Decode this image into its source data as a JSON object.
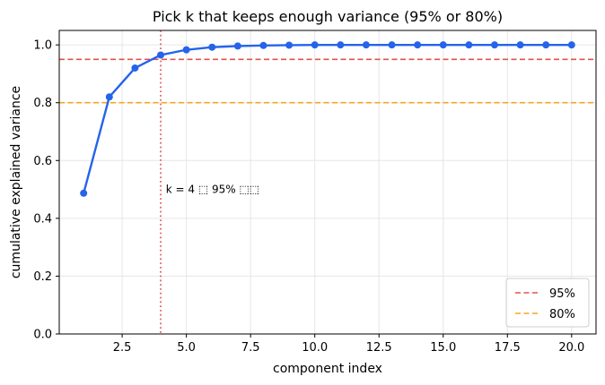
{
  "chart_data": {
    "type": "line",
    "title": "Pick k that keeps enough variance (95% or 80%)",
    "xlabel": "component index",
    "ylabel": "cumulative explained variance",
    "xlim": [
      0.05,
      20.95
    ],
    "ylim": [
      0.0,
      1.05
    ],
    "xticks": [
      2.5,
      5.0,
      7.5,
      10.0,
      12.5,
      15.0,
      17.5,
      20.0
    ],
    "xtick_labels": [
      "2.5",
      "5.0",
      "7.5",
      "10.0",
      "12.5",
      "15.0",
      "17.5",
      "20.0"
    ],
    "yticks": [
      0.0,
      0.2,
      0.4,
      0.6,
      0.8,
      1.0
    ],
    "ytick_labels": [
      "0.0",
      "0.2",
      "0.4",
      "0.6",
      "0.8",
      "1.0"
    ],
    "grid": true,
    "series": [
      {
        "color": "#2563eb",
        "x": [
          1,
          2,
          3,
          4,
          5,
          6,
          7,
          8,
          9,
          10,
          11,
          12,
          13,
          14,
          15,
          16,
          17,
          18,
          19,
          20
        ],
        "values": [
          0.487,
          0.82,
          0.92,
          0.965,
          0.983,
          0.992,
          0.996,
          0.998,
          0.999,
          1.0,
          1.0,
          1.0,
          1.0,
          1.0,
          1.0,
          1.0,
          1.0,
          1.0,
          1.0,
          1.0
        ]
      }
    ],
    "hlines": [
      {
        "name": "95%",
        "y": 0.95,
        "color": "#e05252",
        "style": "dashed"
      },
      {
        "name": "80%",
        "y": 0.8,
        "color": "#f5a623",
        "style": "dashed"
      }
    ],
    "vlines": [
      {
        "x": 4,
        "color": "#e05252",
        "style": "dotted"
      }
    ],
    "annotations": [
      {
        "text": "k = 4 ⬚ 95% ⬚⬚",
        "x": 4.2,
        "y": 0.5
      }
    ],
    "legend": {
      "placement": "bottom-right",
      "entries": [
        "95%",
        "80%"
      ]
    }
  }
}
